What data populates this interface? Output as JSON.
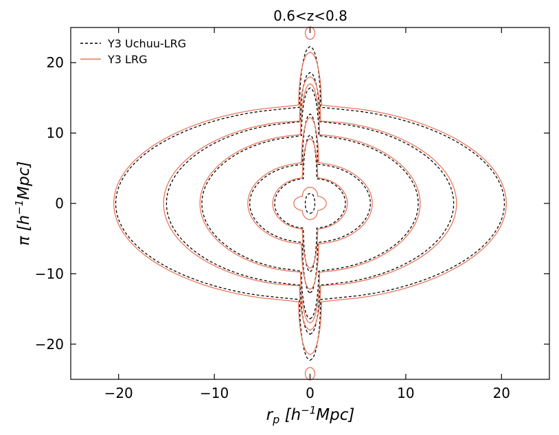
{
  "chart_data": {
    "type": "contour",
    "title": "0.6<z<0.8",
    "xlabel": "r_p [h^-1 Mpc]",
    "ylabel": "π [h^-1 Mpc]",
    "xlim": [
      -25,
      25
    ],
    "ylim": [
      -25,
      25
    ],
    "xticks": [
      -20,
      -10,
      0,
      10,
      20
    ],
    "yticks": [
      -20,
      -10,
      0,
      10,
      20
    ],
    "xtick_labels": [
      "−20",
      "−10",
      "0",
      "10",
      "20"
    ],
    "ytick_labels": [
      "−20",
      "−10",
      "0",
      "10",
      "20"
    ],
    "grid": false,
    "legend_position": "top-left",
    "series": [
      {
        "name": "Y3 Uchuu-LRG",
        "style": "dashed",
        "color": "#000000",
        "contours": [
          {
            "rp_max": 20.3,
            "pi_max": 22.3,
            "waist": 1.1,
            "pi_shoulder": 13.5
          },
          {
            "rp_max": 15.0,
            "pi_max": 18.6,
            "waist": 1.0,
            "pi_shoulder": 11.5
          },
          {
            "rp_max": 11.3,
            "pi_max": 16.4,
            "waist": 0.9,
            "pi_shoulder": 9.5
          },
          {
            "rp_max": 6.3,
            "pi_max": 12.7,
            "waist": 0.8,
            "pi_shoulder": 5.5
          },
          {
            "rp_max": 3.7,
            "pi_max": 9.7,
            "waist": 0.7,
            "pi_shoulder": 3.5
          },
          {
            "rp_max": 0.5,
            "pi_max": 1.4,
            "waist": 0.4,
            "pi_shoulder": 0.8
          }
        ]
      },
      {
        "name": "Y3 LRG",
        "style": "solid",
        "color": "#e8765a",
        "contours": [
          {
            "rp_max": 20.5,
            "pi_max": 21.5,
            "waist": 1.2,
            "pi_shoulder": 13.8
          },
          {
            "rp_max": 15.3,
            "pi_max": 18.0,
            "waist": 1.1,
            "pi_shoulder": 11.7
          },
          {
            "rp_max": 11.5,
            "pi_max": 17.0,
            "waist": 1.0,
            "pi_shoulder": 9.7
          },
          {
            "rp_max": 6.5,
            "pi_max": 12.2,
            "waist": 0.9,
            "pi_shoulder": 5.7
          },
          {
            "rp_max": 3.9,
            "pi_max": 9.2,
            "waist": 0.8,
            "pi_shoulder": 3.6
          },
          {
            "rp_max": 1.7,
            "pi_max": 2.3,
            "waist": 0.8,
            "pi_shoulder": 1.0
          }
        ],
        "islands": [
          {
            "rp": 0.0,
            "pi": 24.2
          },
          {
            "rp": 0.0,
            "pi": -24.2
          }
        ]
      }
    ]
  }
}
